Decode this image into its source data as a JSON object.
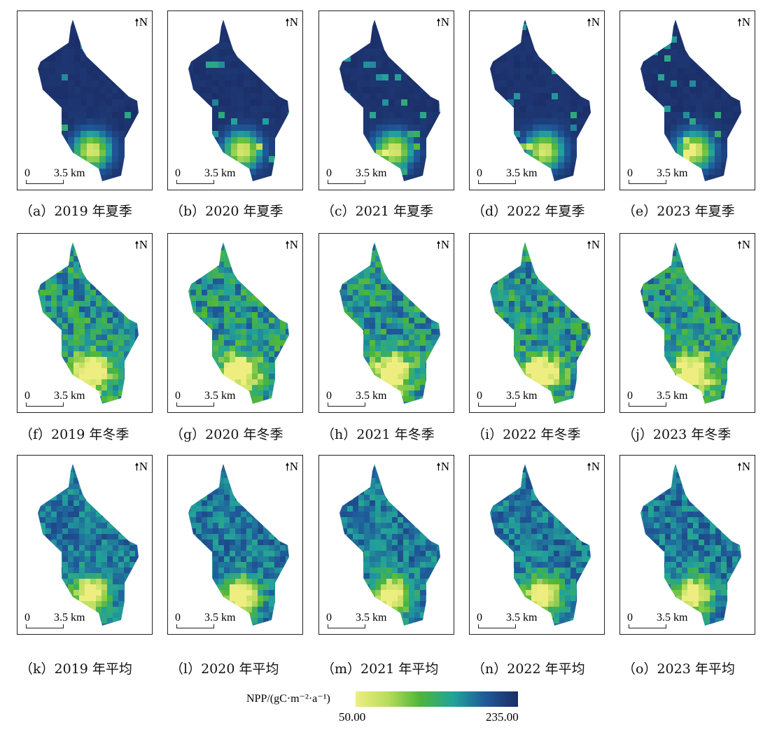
{
  "panels": [
    {
      "label": "（a）2019 年夏季",
      "season": "summer"
    },
    {
      "label": "（b）2020 年夏季",
      "season": "summer"
    },
    {
      "label": "（c）2021 年夏季",
      "season": "summer"
    },
    {
      "label": "（d）2022 年夏季",
      "season": "summer"
    },
    {
      "label": "（e）2023 年夏季",
      "season": "summer"
    },
    {
      "label": "（f）2019 年冬季",
      "season": "winter"
    },
    {
      "label": "（g）2020 年冬季",
      "season": "winter"
    },
    {
      "label": "（h）2021 年冬季",
      "season": "winter"
    },
    {
      "label": "（i）2022 年冬季",
      "season": "winter"
    },
    {
      "label": "（j）2023 年冬季",
      "season": "winter"
    },
    {
      "label": "（k）2019 年平均",
      "season": "average"
    },
    {
      "label": "（l）2020 年平均",
      "season": "average"
    },
    {
      "label": "（m）2021 年平均",
      "season": "average"
    },
    {
      "label": "（n）2022 年平均",
      "season": "average"
    },
    {
      "label": "（o）2023 年平均",
      "season": "average"
    }
  ],
  "map": {
    "north_label": "N",
    "scale_zero": "0",
    "scale_label": "3.5 km"
  },
  "legend": {
    "title": "NPP/(gC·m⁻²·a⁻¹)",
    "min": "50.00",
    "max": "235.00",
    "colors": [
      "#eeee80",
      "#b8dc5c",
      "#4cb53a",
      "#22a39a",
      "#1f5a9a",
      "#1c2c66"
    ]
  }
}
